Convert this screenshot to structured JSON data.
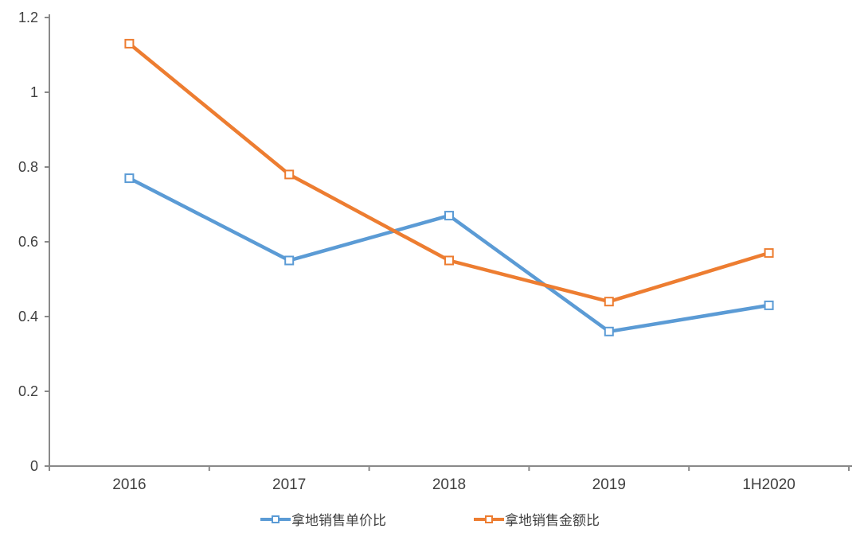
{
  "chart_data": {
    "type": "line",
    "title": "",
    "xlabel": "",
    "ylabel": "",
    "categories": [
      "2016",
      "2017",
      "2018",
      "2019",
      "1H2020"
    ],
    "series": [
      {
        "name": "拿地销售单价比",
        "color": "#5B9BD5",
        "values": [
          0.77,
          0.55,
          0.67,
          0.36,
          0.43
        ]
      },
      {
        "name": "拿地销售金额比",
        "color": "#ED7D31",
        "values": [
          1.13,
          0.78,
          0.55,
          0.44,
          0.57
        ]
      }
    ],
    "ylim": [
      0,
      1.2
    ],
    "y_ticks": [
      0,
      0.2,
      0.4,
      0.6,
      0.8,
      1,
      1.2
    ],
    "y_tick_labels": [
      "0",
      "0.2",
      "0.4",
      "0.6",
      "0.8",
      "1",
      "1.2"
    ],
    "grid": false,
    "legend_position": "bottom",
    "marker": "open-square",
    "axis_color": "#898989",
    "tick_label_color": "#404040",
    "background_color": "#FFFFFF"
  }
}
